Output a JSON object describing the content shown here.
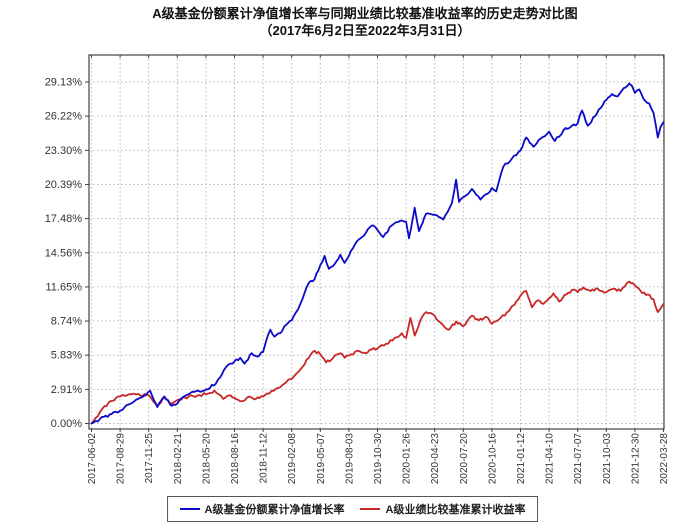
{
  "title": {
    "line1": "A级基金份额累计净值增长率与同期业绩比较基准收益率的历史走势对比图",
    "line2": "（2017年6月2日至2022年3月31日）"
  },
  "chart_data": {
    "type": "line",
    "title": "A级基金份额累计净值增长率与同期业绩比较基准收益率的历史走势对比图",
    "subtitle": "（2017年6月2日至2022年3月31日）",
    "xlabel": "",
    "ylabel": "",
    "grid": true,
    "legend_position": "bottom",
    "ylim": [
      0,
      29.13
    ],
    "y_tick_labels": [
      "0.00%",
      "2.91%",
      "5.83%",
      "8.74%",
      "11.65%",
      "14.56%",
      "17.48%",
      "20.39%",
      "23.30%",
      "26.22%",
      "29.13%"
    ],
    "y_tick_values": [
      0,
      2.91,
      5.83,
      8.74,
      11.65,
      14.56,
      17.48,
      20.39,
      23.3,
      26.22,
      29.13
    ],
    "x_tick_labels": [
      "2017-06-02",
      "2017-08-29",
      "2017-11-25",
      "2018-02-21",
      "2018-05-20",
      "2018-08-16",
      "2018-11-12",
      "2019-02-08",
      "2019-05-07",
      "2019-08-03",
      "2019-10-30",
      "2020-01-26",
      "2020-04-23",
      "2020-07-20",
      "2020-10-16",
      "2021-01-12",
      "2021-04-10",
      "2021-07-07",
      "2021-10-03",
      "2021-12-30",
      "2022-03-28"
    ],
    "x_unit_note": "points x = tick index (0-20), y = cumulative return %",
    "series": [
      {
        "name": "A级基金份额累计净值增长率",
        "color": "#0a0ac8",
        "points": [
          [
            0,
            0
          ],
          [
            0.3,
            0.4
          ],
          [
            0.7,
            0.8
          ],
          [
            1,
            1.1
          ],
          [
            1.5,
            1.9
          ],
          [
            1.9,
            2.4
          ],
          [
            2.05,
            2.8
          ],
          [
            2.3,
            1.4
          ],
          [
            2.55,
            2.3
          ],
          [
            2.8,
            1.5
          ],
          [
            3,
            1.7
          ],
          [
            3.3,
            2.4
          ],
          [
            3.6,
            2.7
          ],
          [
            4,
            2.9
          ],
          [
            4.35,
            3.4
          ],
          [
            4.7,
            4.8
          ],
          [
            5,
            5.3
          ],
          [
            5.2,
            5.6
          ],
          [
            5.35,
            5.1
          ],
          [
            5.6,
            6
          ],
          [
            5.8,
            5.7
          ],
          [
            6,
            6.1
          ],
          [
            6.1,
            7
          ],
          [
            6.25,
            8
          ],
          [
            6.4,
            7.4
          ],
          [
            6.6,
            7.7
          ],
          [
            6.8,
            8.4
          ],
          [
            7,
            8.8
          ],
          [
            7.3,
            10.2
          ],
          [
            7.6,
            12
          ],
          [
            7.8,
            12.3
          ],
          [
            8,
            13.5
          ],
          [
            8.15,
            14.3
          ],
          [
            8.3,
            13.2
          ],
          [
            8.5,
            13.6
          ],
          [
            8.7,
            14.4
          ],
          [
            8.85,
            13.7
          ],
          [
            9,
            14.3
          ],
          [
            9.3,
            15.6
          ],
          [
            9.6,
            16.3
          ],
          [
            9.85,
            16.9
          ],
          [
            10,
            16.5
          ],
          [
            10.2,
            15.9
          ],
          [
            10.5,
            16.9
          ],
          [
            10.8,
            17.3
          ],
          [
            11,
            17.2
          ],
          [
            11.1,
            15.8
          ],
          [
            11.3,
            18.4
          ],
          [
            11.45,
            16.4
          ],
          [
            11.7,
            17.9
          ],
          [
            12,
            17.8
          ],
          [
            12.3,
            17.4
          ],
          [
            12.6,
            18.8
          ],
          [
            12.75,
            20.8
          ],
          [
            12.85,
            18.9
          ],
          [
            13,
            19.3
          ],
          [
            13.3,
            20
          ],
          [
            13.6,
            19.1
          ],
          [
            13.85,
            19.6
          ],
          [
            14,
            20.1
          ],
          [
            14.15,
            19.8
          ],
          [
            14.4,
            21.9
          ],
          [
            14.7,
            22.6
          ],
          [
            15,
            23.3
          ],
          [
            15.2,
            24.4
          ],
          [
            15.45,
            23.6
          ],
          [
            15.7,
            24.3
          ],
          [
            16,
            24.9
          ],
          [
            16.2,
            24.1
          ],
          [
            16.5,
            25
          ],
          [
            16.8,
            25.4
          ],
          [
            17,
            25.6
          ],
          [
            17.15,
            26.7
          ],
          [
            17.35,
            25.4
          ],
          [
            17.6,
            26.2
          ],
          [
            17.8,
            26.9
          ],
          [
            18,
            27.6
          ],
          [
            18.2,
            28.1
          ],
          [
            18.4,
            27.9
          ],
          [
            18.6,
            28.6
          ],
          [
            18.8,
            29
          ],
          [
            18.9,
            28.8
          ],
          [
            19,
            28.2
          ],
          [
            19.15,
            28.5
          ],
          [
            19.3,
            27.7
          ],
          [
            19.5,
            27.3
          ],
          [
            19.65,
            26.5
          ],
          [
            19.8,
            24.4
          ],
          [
            19.9,
            25.3
          ],
          [
            20,
            25.7
          ]
        ]
      },
      {
        "name": "A级业绩比较基准累计收益率",
        "color": "#c62828",
        "points": [
          [
            0,
            0
          ],
          [
            0.3,
            1
          ],
          [
            0.6,
            1.8
          ],
          [
            1,
            2.3
          ],
          [
            1.4,
            2.5
          ],
          [
            1.7,
            2.4
          ],
          [
            2,
            2.4
          ],
          [
            2.3,
            1.5
          ],
          [
            2.55,
            2.2
          ],
          [
            2.8,
            1.7
          ],
          [
            3,
            2
          ],
          [
            3.4,
            2.3
          ],
          [
            3.7,
            2.4
          ],
          [
            4,
            2.5
          ],
          [
            4.3,
            2.8
          ],
          [
            4.6,
            2.1
          ],
          [
            4.8,
            2.4
          ],
          [
            5,
            2.2
          ],
          [
            5.25,
            1.9
          ],
          [
            5.5,
            2.3
          ],
          [
            5.75,
            2.1
          ],
          [
            6,
            2.3
          ],
          [
            6.3,
            2.8
          ],
          [
            6.6,
            3.1
          ],
          [
            6.8,
            3.5
          ],
          [
            7,
            3.8
          ],
          [
            7.3,
            4.6
          ],
          [
            7.6,
            5.6
          ],
          [
            7.8,
            6.2
          ],
          [
            8,
            5.9
          ],
          [
            8.2,
            5.2
          ],
          [
            8.45,
            5.6
          ],
          [
            8.7,
            6
          ],
          [
            8.85,
            5.6
          ],
          [
            9,
            5.8
          ],
          [
            9.3,
            6.2
          ],
          [
            9.6,
            6
          ],
          [
            9.8,
            6.3
          ],
          [
            10,
            6.4
          ],
          [
            10.3,
            6.8
          ],
          [
            10.6,
            7.3
          ],
          [
            10.85,
            7.7
          ],
          [
            11,
            7.3
          ],
          [
            11.15,
            9
          ],
          [
            11.3,
            7.5
          ],
          [
            11.5,
            8.8
          ],
          [
            11.7,
            9.5
          ],
          [
            12,
            9.2
          ],
          [
            12.2,
            8.6
          ],
          [
            12.5,
            8
          ],
          [
            12.75,
            8.7
          ],
          [
            13,
            8.3
          ],
          [
            13.3,
            9.2
          ],
          [
            13.55,
            8.8
          ],
          [
            13.8,
            9.1
          ],
          [
            14,
            8.5
          ],
          [
            14.3,
            9
          ],
          [
            14.6,
            9.6
          ],
          [
            14.85,
            10.4
          ],
          [
            15,
            10.9
          ],
          [
            15.2,
            11.3
          ],
          [
            15.4,
            9.9
          ],
          [
            15.6,
            10.5
          ],
          [
            15.8,
            10.2
          ],
          [
            16,
            10.7
          ],
          [
            16.15,
            11.1
          ],
          [
            16.35,
            10.4
          ],
          [
            16.6,
            11
          ],
          [
            16.8,
            11.4
          ],
          [
            17,
            11.2
          ],
          [
            17.2,
            11.6
          ],
          [
            17.45,
            11.3
          ],
          [
            17.7,
            11.5
          ],
          [
            18,
            11.2
          ],
          [
            18.25,
            11.5
          ],
          [
            18.5,
            11.3
          ],
          [
            18.8,
            12.1
          ],
          [
            19,
            11.8
          ],
          [
            19.2,
            11.3
          ],
          [
            19.45,
            11
          ],
          [
            19.65,
            10.6
          ],
          [
            19.8,
            9.5
          ],
          [
            19.9,
            9.8
          ],
          [
            20,
            10.2
          ]
        ]
      }
    ],
    "style": {
      "grid_color": "#b8b8b8",
      "border_color": "#444444",
      "tick_label_color": "#333333",
      "background": "#ffffff"
    }
  }
}
